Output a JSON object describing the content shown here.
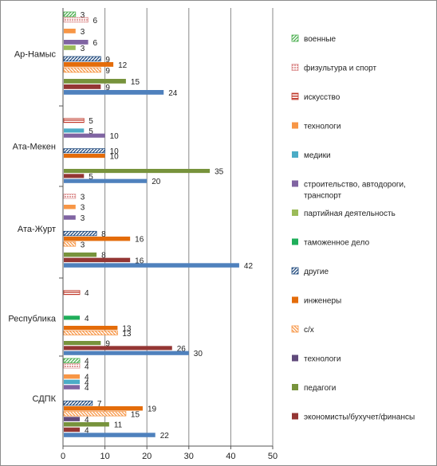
{
  "chart_data": {
    "type": "bar",
    "orientation": "horizontal",
    "xlim": [
      0,
      50
    ],
    "xticks": [
      0,
      10,
      20,
      30,
      40,
      50
    ],
    "grid": "vertical major gridlines",
    "legend_position": "right",
    "categories": [
      "Ар-Намыс",
      "Ата-Мекен",
      "Ата-Журт",
      "Республика",
      "СДПК"
    ],
    "series": [
      {
        "name": "военные",
        "color": "#4caf50",
        "pattern": "diag-green",
        "values": [
          3,
          null,
          null,
          null,
          4
        ]
      },
      {
        "name": "физультура и спорт",
        "color": "#e09a9a",
        "pattern": "dots-pink",
        "values": [
          6,
          null,
          3,
          null,
          4
        ]
      },
      {
        "name": "искусство",
        "color": "#c0392b",
        "pattern": "hstripe-red",
        "values": [
          null,
          5,
          null,
          4,
          null
        ]
      },
      {
        "name": "технологи",
        "color": "#f79646",
        "pattern": "solid",
        "values": [
          3,
          null,
          3,
          null,
          4
        ]
      },
      {
        "name": "медики",
        "color": "#4bacc6",
        "pattern": "solid",
        "values": [
          null,
          5,
          null,
          null,
          4
        ]
      },
      {
        "name": "строительство, автодороги, транспорт",
        "color": "#8064a2",
        "pattern": "solid",
        "values": [
          6,
          10,
          3,
          null,
          4
        ]
      },
      {
        "name": "партийная деятельность",
        "color": "#9bbb59",
        "pattern": "solid",
        "values": [
          3,
          null,
          null,
          null,
          null
        ]
      },
      {
        "name": "таможенное дело",
        "color": "#1fae5a",
        "pattern": "solid",
        "values": [
          null,
          null,
          null,
          4,
          null
        ]
      },
      {
        "name": "другие",
        "color": "#1f497d",
        "pattern": "diag-navy",
        "values": [
          9,
          10,
          8,
          null,
          7
        ]
      },
      {
        "name": "инженеры",
        "color": "#e46c0a",
        "pattern": "solid",
        "values": [
          12,
          10,
          16,
          13,
          19
        ]
      },
      {
        "name": "с/х",
        "color": "#f79646",
        "pattern": "diag-orange",
        "values": [
          9,
          null,
          3,
          13,
          15
        ]
      },
      {
        "name": "технологи",
        "color": "#604a7b",
        "pattern": "solid",
        "values": [
          null,
          null,
          null,
          null,
          4
        ]
      },
      {
        "name": "педагоги",
        "color": "#77933c",
        "pattern": "solid",
        "values": [
          15,
          35,
          8,
          9,
          11
        ]
      },
      {
        "name": "экономисты/бухучет/финансы",
        "color": "#943634",
        "pattern": "solid",
        "values": [
          9,
          5,
          16,
          26,
          4
        ]
      },
      {
        "name": "",
        "color": "#4f81bd",
        "pattern": "solid",
        "values": [
          24,
          20,
          42,
          30,
          22
        ]
      }
    ]
  }
}
